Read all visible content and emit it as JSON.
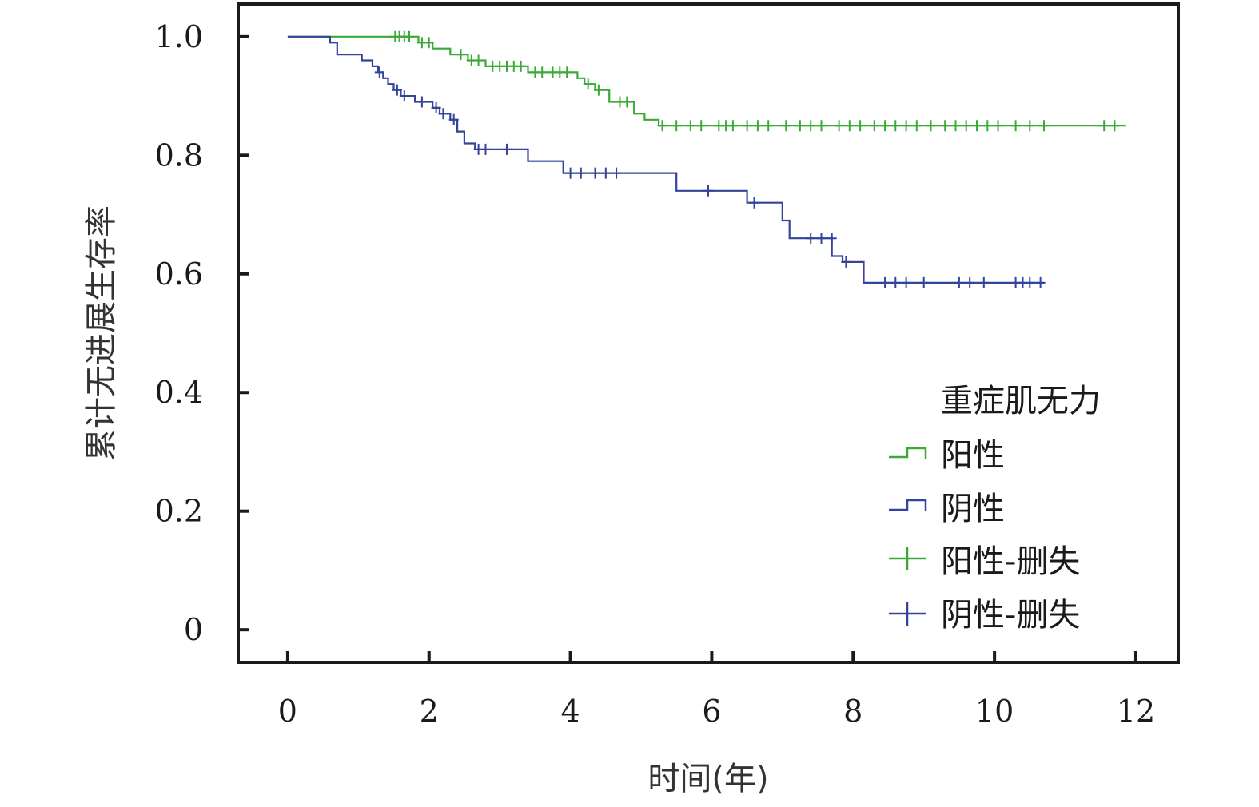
{
  "chart_data": {
    "type": "line",
    "subtype": "kaplan-meier",
    "title": "",
    "xlabel": "时间(年)",
    "ylabel": "累计无进展生存率",
    "xlim": [
      -0.7,
      12.6
    ],
    "ylim": [
      -0.055,
      1.055
    ],
    "xticks": [
      0,
      2,
      4,
      6,
      8,
      10,
      12
    ],
    "xtick_labels": [
      "0",
      "2",
      "4",
      "6",
      "8",
      "10",
      "12"
    ],
    "yticks": [
      0,
      0.2,
      0.4,
      0.6,
      0.8,
      1.0
    ],
    "ytick_labels": [
      "0",
      "0.2",
      "0.4",
      "0.6",
      "0.8",
      "1.0"
    ],
    "grid": false,
    "legend": {
      "title": "重症肌无力",
      "position": "bottom-right",
      "entries": [
        "阳性",
        "阴性",
        "阳性-删失",
        "阴性-删失"
      ]
    },
    "series": [
      {
        "name": "阳性",
        "color": "#3aaa35",
        "steps": [
          [
            0,
            1.0
          ],
          [
            1.85,
            0.99
          ],
          [
            2.05,
            0.98
          ],
          [
            2.3,
            0.97
          ],
          [
            2.55,
            0.96
          ],
          [
            2.8,
            0.95
          ],
          [
            3.4,
            0.94
          ],
          [
            4.1,
            0.93
          ],
          [
            4.2,
            0.92
          ],
          [
            4.35,
            0.91
          ],
          [
            4.55,
            0.89
          ],
          [
            4.9,
            0.87
          ],
          [
            5.05,
            0.86
          ],
          [
            5.25,
            0.85
          ],
          [
            11.85,
            0.85
          ]
        ],
        "censored": [
          [
            1.52,
            1.0
          ],
          [
            1.58,
            1.0
          ],
          [
            1.65,
            1.0
          ],
          [
            1.72,
            1.0
          ],
          [
            1.9,
            0.99
          ],
          [
            2.0,
            0.99
          ],
          [
            2.45,
            0.97
          ],
          [
            2.6,
            0.96
          ],
          [
            2.7,
            0.96
          ],
          [
            2.9,
            0.95
          ],
          [
            3.0,
            0.95
          ],
          [
            3.1,
            0.95
          ],
          [
            3.2,
            0.95
          ],
          [
            3.3,
            0.95
          ],
          [
            3.5,
            0.94
          ],
          [
            3.6,
            0.94
          ],
          [
            3.75,
            0.94
          ],
          [
            3.85,
            0.94
          ],
          [
            3.95,
            0.94
          ],
          [
            4.25,
            0.92
          ],
          [
            4.4,
            0.91
          ],
          [
            4.7,
            0.89
          ],
          [
            4.8,
            0.89
          ],
          [
            5.3,
            0.85
          ],
          [
            5.5,
            0.85
          ],
          [
            5.7,
            0.85
          ],
          [
            5.85,
            0.85
          ],
          [
            6.1,
            0.85
          ],
          [
            6.2,
            0.85
          ],
          [
            6.3,
            0.85
          ],
          [
            6.5,
            0.85
          ],
          [
            6.65,
            0.85
          ],
          [
            6.8,
            0.85
          ],
          [
            7.05,
            0.85
          ],
          [
            7.25,
            0.85
          ],
          [
            7.4,
            0.85
          ],
          [
            7.55,
            0.85
          ],
          [
            7.8,
            0.85
          ],
          [
            7.95,
            0.85
          ],
          [
            8.1,
            0.85
          ],
          [
            8.3,
            0.85
          ],
          [
            8.45,
            0.85
          ],
          [
            8.6,
            0.85
          ],
          [
            8.75,
            0.85
          ],
          [
            8.9,
            0.85
          ],
          [
            9.1,
            0.85
          ],
          [
            9.3,
            0.85
          ],
          [
            9.45,
            0.85
          ],
          [
            9.6,
            0.85
          ],
          [
            9.75,
            0.85
          ],
          [
            9.9,
            0.85
          ],
          [
            10.05,
            0.85
          ],
          [
            10.3,
            0.85
          ],
          [
            10.5,
            0.85
          ],
          [
            10.7,
            0.85
          ],
          [
            11.55,
            0.85
          ],
          [
            11.7,
            0.85
          ]
        ]
      },
      {
        "name": "阴性",
        "color": "#33449a",
        "steps": [
          [
            0,
            1.0
          ],
          [
            0.6,
            0.99
          ],
          [
            0.7,
            0.97
          ],
          [
            1.05,
            0.96
          ],
          [
            1.2,
            0.95
          ],
          [
            1.28,
            0.94
          ],
          [
            1.35,
            0.93
          ],
          [
            1.42,
            0.92
          ],
          [
            1.5,
            0.91
          ],
          [
            1.6,
            0.9
          ],
          [
            1.8,
            0.89
          ],
          [
            2.05,
            0.88
          ],
          [
            2.15,
            0.87
          ],
          [
            2.3,
            0.86
          ],
          [
            2.4,
            0.84
          ],
          [
            2.5,
            0.82
          ],
          [
            2.65,
            0.81
          ],
          [
            3.4,
            0.79
          ],
          [
            3.9,
            0.77
          ],
          [
            5.5,
            0.74
          ],
          [
            6.5,
            0.72
          ],
          [
            7.0,
            0.69
          ],
          [
            7.1,
            0.66
          ],
          [
            7.7,
            0.63
          ],
          [
            7.85,
            0.62
          ],
          [
            8.15,
            0.585
          ],
          [
            10.7,
            0.585
          ]
        ],
        "censored": [
          [
            1.3,
            0.94
          ],
          [
            1.55,
            0.91
          ],
          [
            1.65,
            0.9
          ],
          [
            1.9,
            0.89
          ],
          [
            2.1,
            0.88
          ],
          [
            2.2,
            0.87
          ],
          [
            2.35,
            0.86
          ],
          [
            2.7,
            0.81
          ],
          [
            2.8,
            0.81
          ],
          [
            3.1,
            0.81
          ],
          [
            4.0,
            0.77
          ],
          [
            4.15,
            0.77
          ],
          [
            4.35,
            0.77
          ],
          [
            4.5,
            0.77
          ],
          [
            4.65,
            0.77
          ],
          [
            5.95,
            0.74
          ],
          [
            6.6,
            0.72
          ],
          [
            7.4,
            0.66
          ],
          [
            7.55,
            0.66
          ],
          [
            7.7,
            0.66
          ],
          [
            7.9,
            0.62
          ],
          [
            8.45,
            0.585
          ],
          [
            8.6,
            0.585
          ],
          [
            8.75,
            0.585
          ],
          [
            9.0,
            0.585
          ],
          [
            9.5,
            0.585
          ],
          [
            9.65,
            0.585
          ],
          [
            9.85,
            0.585
          ],
          [
            10.3,
            0.585
          ],
          [
            10.4,
            0.585
          ],
          [
            10.5,
            0.585
          ],
          [
            10.65,
            0.585
          ]
        ]
      }
    ]
  }
}
